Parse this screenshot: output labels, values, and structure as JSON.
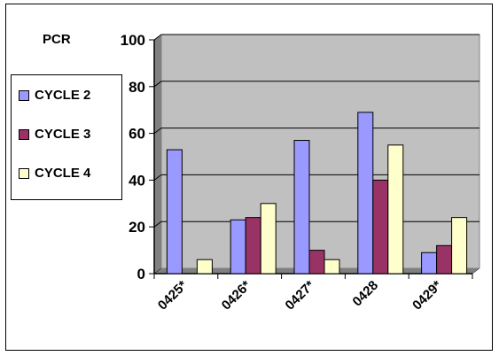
{
  "chart_data": {
    "type": "bar",
    "title": "PCR",
    "xlabel": "",
    "ylabel": "",
    "ylim": [
      0,
      100
    ],
    "yticks": [
      0,
      20,
      40,
      60,
      80,
      100
    ],
    "categories": [
      "0425*",
      "0426*",
      "0427*",
      "0428",
      "0429*"
    ],
    "series": [
      {
        "name": "CYCLE 2",
        "color": "#9999ff",
        "values": [
          53,
          23,
          57,
          69,
          9
        ]
      },
      {
        "name": "CYCLE 3",
        "color": "#993366",
        "values": [
          0,
          24,
          10,
          40,
          12
        ]
      },
      {
        "name": "CYCLE 4",
        "color": "#ffffcc",
        "values": [
          6,
          30,
          6,
          55,
          24
        ]
      }
    ],
    "plot_background": "#c0c0c0",
    "grid": true,
    "legend_position": "left"
  }
}
